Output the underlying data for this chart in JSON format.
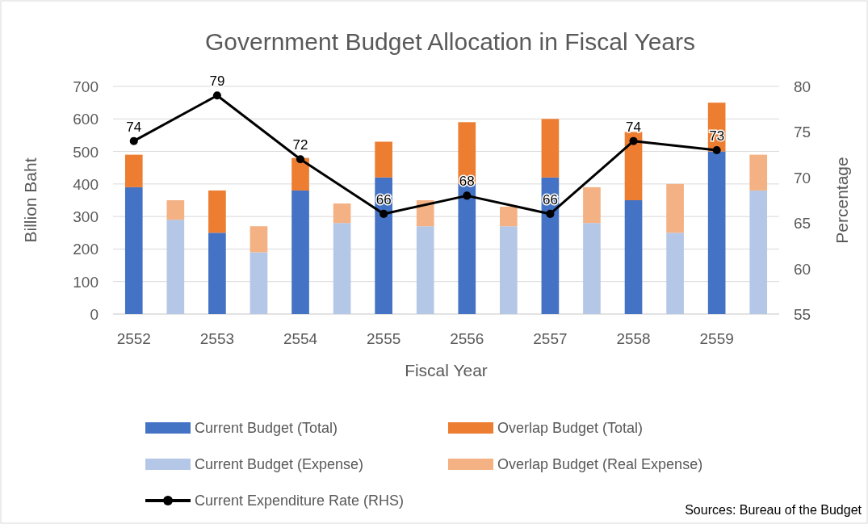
{
  "chart_data": {
    "type": "bar",
    "title": "Government Budget Allocation in Fiscal Years",
    "xlabel": "Fiscal Year",
    "ylabel": "Billion Baht",
    "y2label": "Percentage",
    "categories": [
      "2552",
      null,
      "2553",
      null,
      "2554",
      null,
      "2555",
      null,
      "2556",
      null,
      "2557",
      null,
      "2558",
      null,
      "2559",
      null
    ],
    "stacked": true,
    "series": [
      {
        "name": "Current Budget (Total)",
        "color": "#4472c4",
        "values": [
          390,
          null,
          250,
          null,
          380,
          null,
          420,
          null,
          400,
          null,
          420,
          null,
          350,
          null,
          500,
          null
        ]
      },
      {
        "name": "Overlap Budget (Total)",
        "color": "#ed7d31",
        "values": [
          100,
          null,
          130,
          null,
          100,
          null,
          110,
          null,
          190,
          null,
          180,
          null,
          210,
          null,
          150,
          null
        ]
      },
      {
        "name": "Current Budget (Expense)",
        "color": "#b4c7e7",
        "values": [
          null,
          290,
          null,
          190,
          null,
          280,
          null,
          270,
          null,
          270,
          null,
          280,
          null,
          250,
          null,
          380
        ]
      },
      {
        "name": "Overlap Budget (Real Expense)",
        "color": "#f4b183",
        "values": [
          null,
          60,
          null,
          80,
          null,
          60,
          null,
          80,
          null,
          60,
          null,
          110,
          null,
          150,
          null,
          110
        ]
      },
      {
        "name": "Current Expenditure Rate (RHS)",
        "type": "line",
        "axis": "y2",
        "color": "#000000",
        "values": [
          74,
          null,
          79,
          null,
          72,
          null,
          66,
          null,
          68,
          null,
          66,
          null,
          74,
          null,
          73,
          null
        ],
        "value_labels": [
          "74",
          null,
          "79",
          null,
          "72",
          null,
          "66",
          null,
          "68",
          null,
          "66",
          null,
          "74",
          null,
          "73",
          null
        ]
      }
    ],
    "ylim": [
      0,
      700
    ],
    "yticks": [
      0,
      100,
      200,
      300,
      400,
      500,
      600,
      700
    ],
    "y2lim": [
      55,
      80
    ],
    "y2ticks": [
      55,
      60,
      65,
      70,
      75,
      80
    ],
    "grid": "y",
    "legend": "bottom",
    "marker": "circle",
    "line_style": "solid",
    "annotations": [
      "Sources: Bureau of the Budget"
    ]
  }
}
